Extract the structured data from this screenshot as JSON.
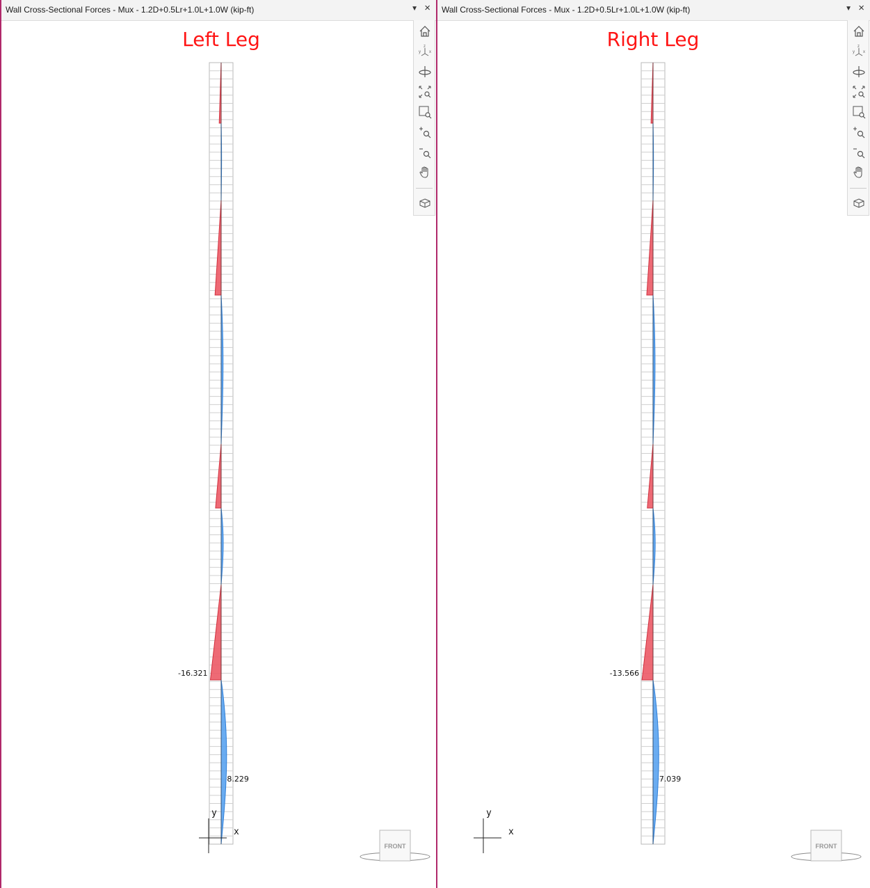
{
  "panels": [
    {
      "title": "Wall Cross-Sectional Forces - Mux - 1.2D+0.5Lr+1.0L+1.0W (kip-ft)",
      "heading": "Left Leg",
      "min_label": "-16.321",
      "max_label": "8.229",
      "min_value": -16.321,
      "max_value": 8.229
    },
    {
      "title": "Wall Cross-Sectional Forces - Mux - 1.2D+0.5Lr+1.0L+1.0W (kip-ft)",
      "heading": "Right Leg",
      "min_label": "-13.566",
      "max_label": "7.039",
      "min_value": -13.566,
      "max_value": 7.039
    }
  ],
  "axis": {
    "y": "y",
    "x": "x"
  },
  "view_cube": {
    "label": "FRONT"
  },
  "toolbar_icons": [
    "home-icon",
    "view-axes-icon",
    "rotate-icon",
    "zoom-extents-icon",
    "zoom-window-icon",
    "zoom-in-icon",
    "zoom-out-icon",
    "pan-hand-icon",
    "3d-view-icon"
  ],
  "colors": {
    "positive": "#5aa3f0",
    "negative": "#ec5a66",
    "title_red": "#ff1414",
    "pane_border": "#b0286a"
  }
}
